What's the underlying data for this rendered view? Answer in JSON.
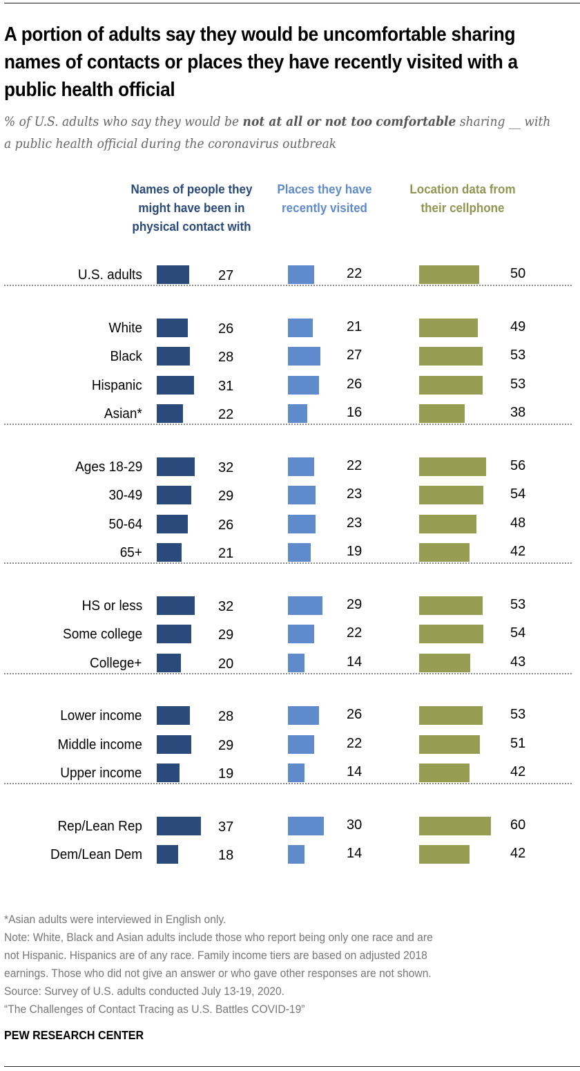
{
  "title": "A portion of adults say they would be uncomfortable sharing names of contacts or places they have recently visited with a public health official",
  "subtitle": {
    "prefix": "% of U.S. adults who say they would be ",
    "bold1": "not at all or not too",
    "bold2": "comfortable",
    "suffix": " sharing __ with a public health official during the coronavirus outbreak"
  },
  "chart_data": {
    "type": "bar",
    "orientation": "horizontal",
    "title": "A portion of adults say they would be uncomfortable sharing names of contacts or places they have recently visited with a public health official",
    "subtitle": "% of U.S. adults who say they would be not at all or not too comfortable sharing __ with a public health official during the coronavirus outbreak",
    "xlabel": "",
    "ylabel": "",
    "xlim": [
      0,
      100
    ],
    "grid": false,
    "legend": "column headers on top",
    "categories": [
      "U.S. adults",
      "White",
      "Black",
      "Hispanic",
      "Asian*",
      "Ages 18-29",
      "30-49",
      "50-64",
      "65+",
      "HS or less",
      "Some college",
      "College+",
      "Lower income",
      "Middle income",
      "Upper income",
      "Rep/Lean Rep",
      "Dem/Lean Dem"
    ],
    "groups": [
      [
        "U.S. adults"
      ],
      [
        "White",
        "Black",
        "Hispanic",
        "Asian*"
      ],
      [
        "Ages 18-29",
        "30-49",
        "50-64",
        "65+"
      ],
      [
        "HS or less",
        "Some college",
        "College+"
      ],
      [
        "Lower income",
        "Middle income",
        "Upper income"
      ],
      [
        "Rep/Lean Rep",
        "Dem/Lean Dem"
      ]
    ],
    "series": [
      {
        "name": "Names of people they might have been in physical contact with",
        "color": "#2a4a7b",
        "values": [
          27,
          26,
          28,
          31,
          22,
          32,
          29,
          26,
          21,
          32,
          29,
          20,
          28,
          29,
          19,
          37,
          18
        ]
      },
      {
        "name": "Places they have recently visited",
        "color": "#5f8bcd",
        "values": [
          22,
          21,
          27,
          26,
          16,
          22,
          23,
          23,
          19,
          29,
          22,
          14,
          26,
          22,
          14,
          30,
          14
        ]
      },
      {
        "name": "Location data from their cellphone",
        "color": "#969d53",
        "values": [
          50,
          49,
          53,
          53,
          38,
          56,
          54,
          48,
          42,
          53,
          54,
          43,
          53,
          51,
          42,
          60,
          42
        ]
      }
    ]
  },
  "column_headers": [
    "Names of people they might have been in physical contact with",
    "Places they have recently visited",
    "Location data from their cellphone"
  ],
  "notes": [
    "*Asian adults were interviewed in English only.",
    "Note: White, Black and Asian adults include those who report being only one race and are",
    "not Hispanic. Hispanics are of any race. Family income tiers are based on adjusted 2018",
    "earnings. Those who did not give an answer or who gave other responses are not shown.",
    "Source: Survey of U.S. adults conducted July 13-19, 2020.",
    "“The Challenges of Contact Tracing as U.S. Battles COVID-19”"
  ],
  "brand": "PEW RESEARCH CENTER"
}
